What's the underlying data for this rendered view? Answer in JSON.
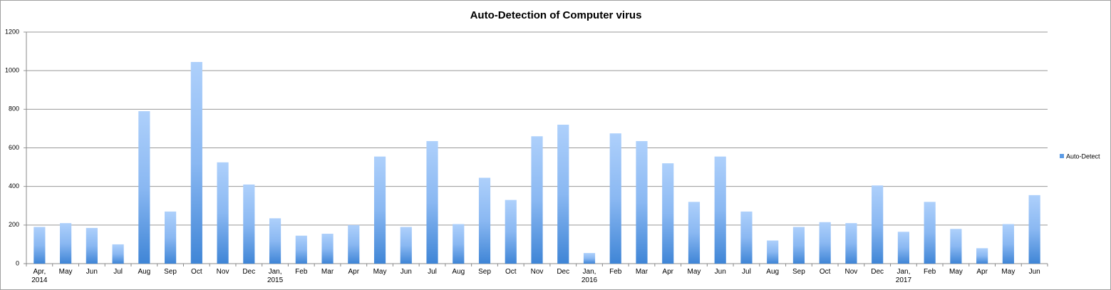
{
  "chart_data": {
    "type": "bar",
    "title": "Auto-Detection of Computer virus",
    "categories": [
      "Apr,\n2014",
      "May",
      "Jun",
      "Jul",
      "Aug",
      "Sep",
      "Oct",
      "Nov",
      "Dec",
      "Jan,\n2015",
      "Feb",
      "Mar",
      "Apr",
      "May",
      "Jun",
      "Jul",
      "Aug",
      "Sep",
      "Oct",
      "Nov",
      "Dec",
      "Jan,\n2016",
      "Feb",
      "Mar",
      "Apr",
      "May",
      "Jun",
      "Jul",
      "Aug",
      "Sep",
      "Oct",
      "Nov",
      "Dec",
      "Jan,\n2017",
      "Feb",
      "May",
      "Apr",
      "May",
      "Jun"
    ],
    "series": [
      {
        "name": "Auto-Detect",
        "color": "#5b9be6",
        "values": [
          190,
          210,
          185,
          100,
          790,
          270,
          1045,
          525,
          410,
          235,
          145,
          155,
          200,
          555,
          190,
          635,
          205,
          445,
          330,
          660,
          720,
          55,
          675,
          635,
          520,
          320,
          555,
          270,
          120,
          190,
          215,
          210,
          405,
          165,
          320,
          180,
          80,
          205,
          355
        ]
      }
    ],
    "ylim": [
      0,
      1200
    ],
    "yticks": [
      0,
      200,
      400,
      600,
      800,
      1000,
      1200
    ],
    "grid": true,
    "legend": "right"
  }
}
